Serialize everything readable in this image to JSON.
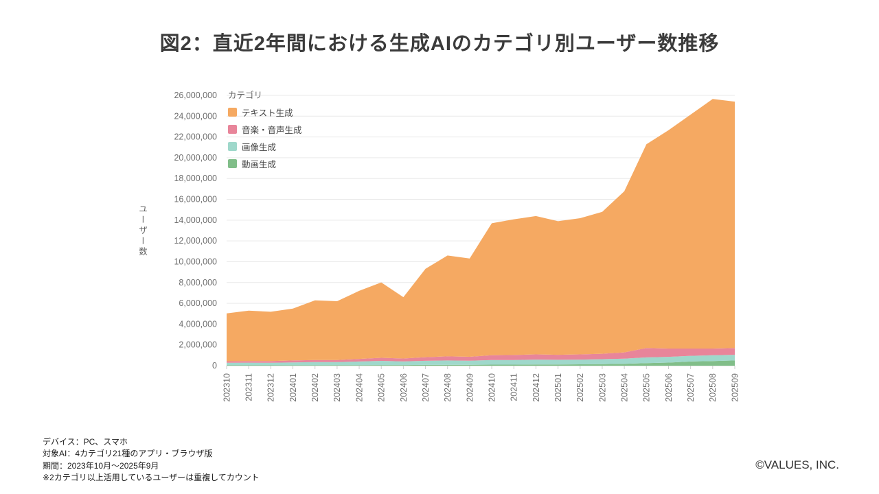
{
  "title": "図2：直近2年間における生成AIのカテゴリ別ユーザー数推移",
  "y_axis_title": "ユーザー数",
  "legend": {
    "title": "カテゴリ",
    "items": [
      {
        "label": "テキスト生成",
        "color": "#F5A962"
      },
      {
        "label": "音楽・音声生成",
        "color": "#E8859A"
      },
      {
        "label": "画像生成",
        "color": "#9FD8CB"
      },
      {
        "label": "動画生成",
        "color": "#81BE89"
      }
    ]
  },
  "footnotes": [
    "デバイス：PC、スマホ",
    "対象AI：4カテゴリ21種のアプリ・ブラウザ版",
    "期間：2023年10月～2025年9月",
    "※2カテゴリ以上活用しているユーザーは重複してカウント"
  ],
  "copyright": "©VALUES, INC.",
  "chart_data": {
    "type": "area",
    "stacked": true,
    "title": "図2：直近2年間における生成AIのカテゴリ別ユーザー数推移",
    "xlabel": "",
    "ylabel": "ユーザー数",
    "ylim": [
      0,
      26000000
    ],
    "y_ticks": [
      0,
      2000000,
      4000000,
      6000000,
      8000000,
      10000000,
      12000000,
      14000000,
      16000000,
      18000000,
      20000000,
      22000000,
      24000000,
      26000000
    ],
    "grid": true,
    "legend_position": "top-left",
    "categories": [
      "202310",
      "202311",
      "202312",
      "202401",
      "202402",
      "202403",
      "202404",
      "202405",
      "202406",
      "202407",
      "202408",
      "202409",
      "202410",
      "202411",
      "202412",
      "202501",
      "202502",
      "202503",
      "202504",
      "202505",
      "202506",
      "202507",
      "202508",
      "202509"
    ],
    "series": [
      {
        "name": "動画生成",
        "color": "#81BE89",
        "values": [
          30000,
          30000,
          30000,
          40000,
          40000,
          50000,
          50000,
          60000,
          60000,
          70000,
          80000,
          80000,
          100000,
          100000,
          120000,
          120000,
          130000,
          150000,
          180000,
          250000,
          300000,
          400000,
          450000,
          500000
        ]
      },
      {
        "name": "画像生成",
        "color": "#9FD8CB",
        "values": [
          250000,
          260000,
          250000,
          280000,
          300000,
          300000,
          350000,
          400000,
          350000,
          400000,
          420000,
          400000,
          450000,
          450000,
          470000,
          450000,
          460000,
          480000,
          500000,
          550000,
          550000,
          550000,
          550000,
          550000
        ]
      },
      {
        "name": "音楽・音声生成",
        "color": "#E8859A",
        "values": [
          150000,
          160000,
          160000,
          180000,
          200000,
          200000,
          250000,
          300000,
          280000,
          350000,
          400000,
          380000,
          450000,
          480000,
          500000,
          480000,
          500000,
          520000,
          600000,
          900000,
          800000,
          700000,
          650000,
          650000
        ]
      },
      {
        "name": "テキスト生成",
        "color": "#F5A962",
        "values": [
          4600000,
          4850000,
          4750000,
          5000000,
          5750000,
          5650000,
          6550000,
          7250000,
          5900000,
          8500000,
          9700000,
          9450000,
          12700000,
          13050000,
          13300000,
          12850000,
          13100000,
          13650000,
          15500000,
          19600000,
          21000000,
          22500000,
          24000000,
          23700000
        ]
      }
    ]
  },
  "style": {
    "grid_color": "#e9e9e9",
    "axis_line_color": "#d8d8d8",
    "tick_color": "#cccccc",
    "tick_label_color": "#707070"
  }
}
